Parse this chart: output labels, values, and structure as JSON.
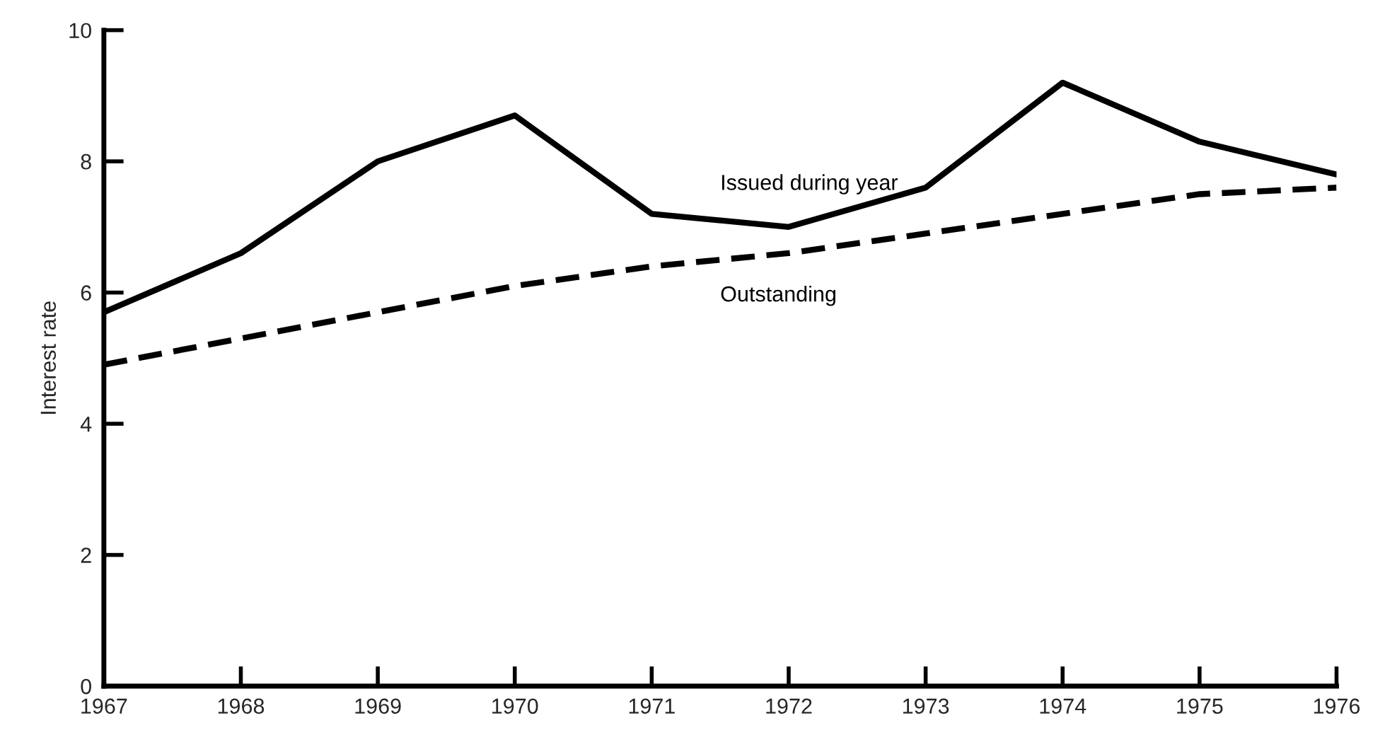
{
  "chart_data": {
    "type": "line",
    "ylabel": "Interest rate",
    "x": [
      1967,
      1968,
      1969,
      1970,
      1971,
      1972,
      1973,
      1974,
      1975,
      1976
    ],
    "series": [
      {
        "name": "Issued during year",
        "color": "#000000",
        "line_style": "solid",
        "values": [
          5.7,
          6.6,
          8.0,
          8.7,
          7.2,
          7.0,
          7.6,
          9.2,
          8.3,
          7.8
        ]
      },
      {
        "name": "Outstanding",
        "color": "#000000",
        "line_style": "dashed",
        "values": [
          4.9,
          5.3,
          5.7,
          6.1,
          6.4,
          6.6,
          6.9,
          7.2,
          7.5,
          7.6
        ]
      }
    ],
    "xlim": [
      1967,
      1976
    ],
    "xticks": [
      1967,
      1968,
      1969,
      1970,
      1971,
      1972,
      1973,
      1974,
      1975,
      1976
    ],
    "ylim": [
      0,
      10
    ],
    "yticks": [
      0,
      2,
      4,
      6,
      8,
      10
    ],
    "grid": false,
    "legend": false,
    "marker": "none"
  }
}
